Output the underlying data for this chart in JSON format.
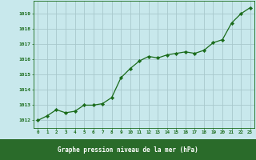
{
  "x": [
    0,
    1,
    2,
    3,
    4,
    5,
    6,
    7,
    8,
    9,
    10,
    11,
    12,
    13,
    14,
    15,
    16,
    17,
    18,
    19,
    20,
    21,
    22,
    23
  ],
  "y": [
    1012.0,
    1012.3,
    1012.7,
    1012.5,
    1012.6,
    1013.0,
    1013.0,
    1013.1,
    1013.5,
    1014.8,
    1015.4,
    1015.9,
    1016.2,
    1016.1,
    1016.3,
    1016.4,
    1016.5,
    1016.4,
    1016.6,
    1017.1,
    1017.3,
    1018.4,
    1019.0,
    1019.4
  ],
  "line_color": "#1a6b1a",
  "marker_color": "#1a6b1a",
  "bg_color": "#c8e8ec",
  "grid_color": "#a8c8cc",
  "xlabel": "Graphe pression niveau de la mer (hPa)",
  "ylabel_ticks": [
    1012,
    1013,
    1014,
    1015,
    1016,
    1017,
    1018,
    1019
  ],
  "xlim": [
    -0.5,
    23.5
  ],
  "ylim": [
    1011.5,
    1019.85
  ],
  "label_color": "#1a4a1a",
  "tick_color": "#1a6b1a",
  "xlabel_bg": "#2a6b2a"
}
